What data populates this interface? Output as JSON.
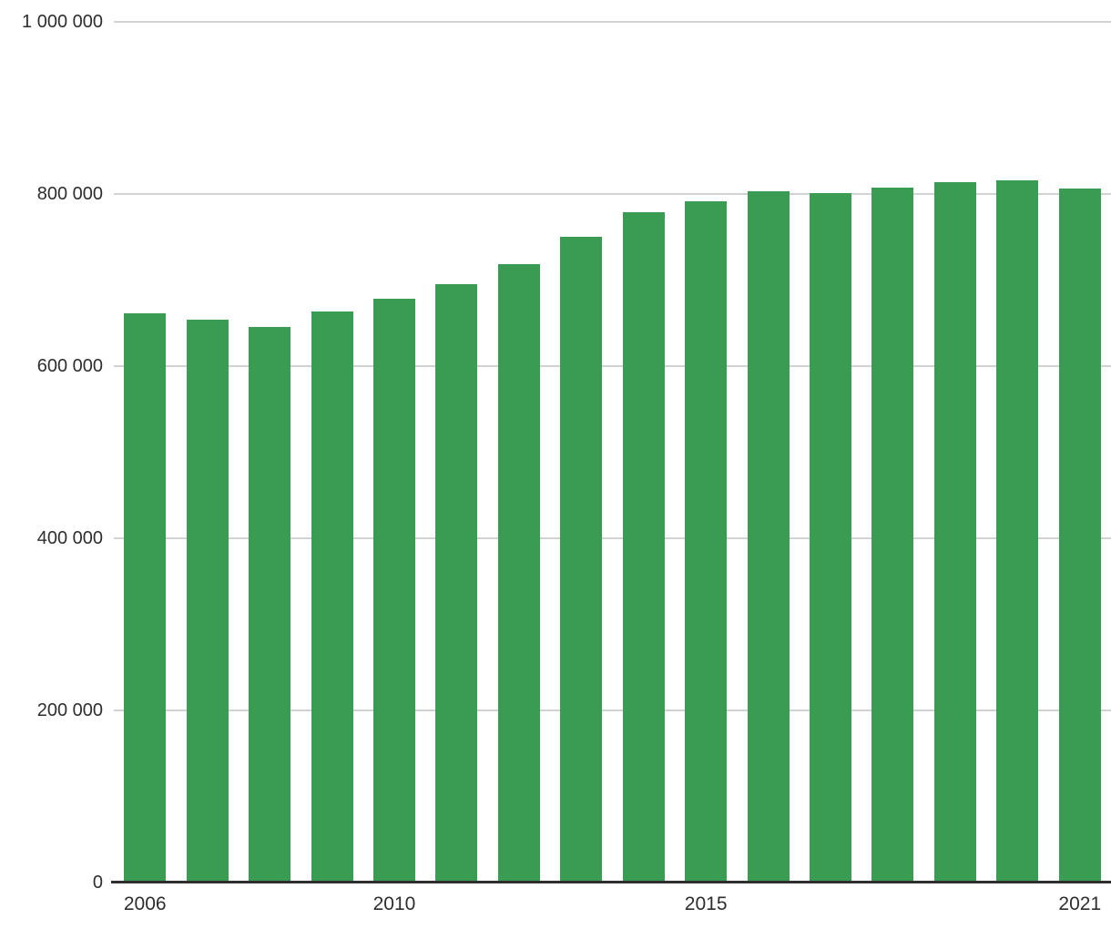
{
  "chart_data": {
    "type": "bar",
    "title": "",
    "xlabel": "",
    "ylabel": "",
    "categories": [
      "2006",
      "2007",
      "2008",
      "2009",
      "2010",
      "2011",
      "2012",
      "2013",
      "2014",
      "2015",
      "2016",
      "2017",
      "2018",
      "2019",
      "2020",
      "2021"
    ],
    "values": [
      661000,
      653000,
      645000,
      663000,
      678000,
      695000,
      718000,
      750000,
      778000,
      791000,
      803000,
      801000,
      807000,
      813000,
      815000,
      806000
    ],
    "ylim": [
      0,
      1000000
    ],
    "grid": true,
    "legend": false,
    "y_ticks": [
      {
        "value": 0,
        "label": "0"
      },
      {
        "value": 200000,
        "label": "200 000"
      },
      {
        "value": 400000,
        "label": "400 000"
      },
      {
        "value": 600000,
        "label": "600 000"
      },
      {
        "value": 800000,
        "label": "800 000"
      },
      {
        "value": 1000000,
        "label": "1 000 000"
      }
    ],
    "x_tick_labels": [
      {
        "category_index": 0,
        "label": "2006"
      },
      {
        "category_index": 4,
        "label": "2010"
      },
      {
        "category_index": 9,
        "label": "2015"
      },
      {
        "category_index": 15,
        "label": "2021"
      }
    ],
    "colors": {
      "bar": "#3a9b52",
      "gridline": "#d2d2d2",
      "axis_line": "#2e2e2e",
      "text": "#2e2e2e"
    }
  }
}
